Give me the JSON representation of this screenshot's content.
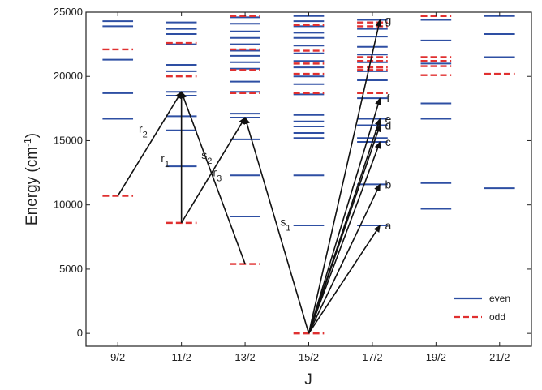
{
  "chart_data": {
    "type": "energy-level-diagram",
    "title": "",
    "xlabel": "J",
    "ylabel": "Energy (cm",
    "ylabel_sup": "-1",
    "ylabel_close": ")",
    "ylim": [
      -1000,
      25000
    ],
    "yticks": [
      0,
      5000,
      10000,
      15000,
      20000,
      25000
    ],
    "categories": [
      "9/2",
      "11/2",
      "13/2",
      "15/2",
      "17/2",
      "19/2",
      "21/2"
    ],
    "colors": {
      "even": "#2e4fa3",
      "odd": "#e03030",
      "arrow": "#111111"
    },
    "legend": {
      "position": "bottom-right",
      "entries": [
        {
          "label": "even",
          "style": "solid"
        },
        {
          "label": "odd",
          "style": "dashed"
        }
      ]
    },
    "series": [
      {
        "name": "even",
        "levels": [
          {
            "J": "9/2",
            "E": [
              16700,
              18700,
              21300,
              23900,
              24300
            ]
          },
          {
            "J": "11/2",
            "E": [
              13000,
              15800,
              16900,
              18500,
              18800,
              20400,
              20900,
              22500,
              23300,
              23700,
              24200
            ]
          },
          {
            "J": "13/2",
            "E": [
              9100,
              12300,
              15100,
              16800,
              17100,
              18800,
              19600,
              20600,
              21100,
              21600,
              22000,
              22500,
              23000,
              23500,
              24100,
              24600
            ]
          },
          {
            "J": "15/2",
            "E": [
              8400,
              12300,
              15200,
              15600,
              16100,
              16500,
              17000,
              18600,
              19400,
              20000,
              20700,
              21200,
              21800,
              22400,
              23000,
              23400,
              23900,
              24300,
              24700
            ]
          },
          {
            "J": "17/2",
            "E": [
              8400,
              11600,
              14900,
              15200,
              16200,
              16700,
              18300,
              19700,
              20400,
              21100,
              21700,
              22300,
              23100,
              23700,
              24400
            ]
          },
          {
            "J": "19/2",
            "E": [
              9700,
              11700,
              16700,
              17900,
              21000,
              22800,
              24400
            ]
          },
          {
            "J": "21/2",
            "E": [
              11300,
              21500,
              23300,
              24700
            ]
          }
        ]
      },
      {
        "name": "odd",
        "levels": [
          {
            "J": "9/2",
            "E": [
              10700,
              22100
            ]
          },
          {
            "J": "11/2",
            "E": [
              8600,
              20000,
              22600
            ]
          },
          {
            "J": "13/2",
            "E": [
              5400,
              18700,
              20500,
              22100,
              24700
            ]
          },
          {
            "J": "15/2",
            "E": [
              0,
              18700,
              20200,
              21000,
              22000,
              24000
            ]
          },
          {
            "J": "17/2",
            "E": [
              18700,
              20500,
              20700,
              21200,
              21500,
              23900,
              24200
            ]
          },
          {
            "J": "19/2",
            "E": [
              20100,
              20800,
              21200,
              21500,
              24700
            ]
          },
          {
            "J": "21/2",
            "E": [
              20200
            ]
          }
        ]
      }
    ],
    "transitions": [
      {
        "label": "r",
        "sub": "2",
        "from": {
          "J": "9/2",
          "E": 10700
        },
        "to": {
          "J": "11/2",
          "E": 18800
        }
      },
      {
        "label": "r",
        "sub": "1",
        "from": {
          "J": "11/2",
          "E": 8600
        },
        "to": {
          "J": "11/2",
          "E": 18800
        }
      },
      {
        "label": "r",
        "sub": "3",
        "from": {
          "J": "13/2",
          "E": 5400
        },
        "to": {
          "J": "11/2",
          "E": 18800
        }
      },
      {
        "label": "s",
        "sub": "2",
        "from": {
          "J": "11/2",
          "E": 8600
        },
        "to": {
          "J": "13/2",
          "E": 16800
        }
      },
      {
        "label": "s",
        "sub": "1",
        "from": {
          "J": "15/2",
          "E": 0
        },
        "to": {
          "J": "13/2",
          "E": 16800
        }
      },
      {
        "label": "a",
        "sub": "",
        "from": {
          "J": "15/2",
          "E": 0
        },
        "to": {
          "J": "17/2",
          "E": 8400
        }
      },
      {
        "label": "b",
        "sub": "",
        "from": {
          "J": "15/2",
          "E": 0
        },
        "to": {
          "J": "17/2",
          "E": 11600
        }
      },
      {
        "label": "c",
        "sub": "",
        "from": {
          "J": "15/2",
          "E": 0
        },
        "to": {
          "J": "17/2",
          "E": 14900
        }
      },
      {
        "label": "d",
        "sub": "",
        "from": {
          "J": "15/2",
          "E": 0
        },
        "to": {
          "J": "17/2",
          "E": 16200
        }
      },
      {
        "label": "e",
        "sub": "",
        "from": {
          "J": "15/2",
          "E": 0
        },
        "to": {
          "J": "17/2",
          "E": 16700
        }
      },
      {
        "label": "f",
        "sub": "",
        "from": {
          "J": "15/2",
          "E": 0
        },
        "to": {
          "J": "17/2",
          "E": 18300
        }
      },
      {
        "label": "g",
        "sub": "",
        "from": {
          "J": "15/2",
          "E": 0
        },
        "to": {
          "J": "17/2",
          "E": 24400
        }
      }
    ]
  }
}
